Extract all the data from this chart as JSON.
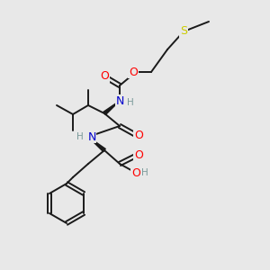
{
  "bg_color": "#e8e8e8",
  "bond_color": "#1a1a1a",
  "bond_width": 1.5,
  "wedge_color": "#1a1a1a",
  "atom_colors": {
    "O": "#ff0000",
    "N": "#0000cc",
    "S": "#cccc00",
    "H": "#7a9a9a",
    "C": "#1a1a1a"
  },
  "font_size": 9,
  "font_size_small": 7.5
}
